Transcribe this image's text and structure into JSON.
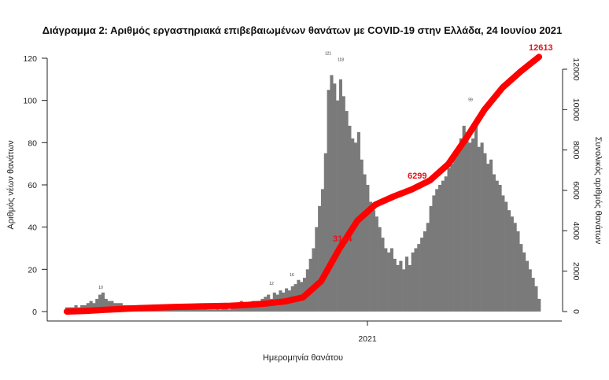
{
  "chart_data": {
    "type": "bar",
    "title": "Διάγραμμα 2: Αριθμός εργαστηριακά επιβεβαιωμένων θανάτων με COVID-19 στην Ελλάδα, 24 Ιουνίου 2021",
    "xlabel": "Ημερομηνία θανάτου",
    "ylabel": "Αριθμός νέων θανάτων",
    "y2label": "Συνολικός αριθμός θανάτων",
    "x_ticks": [
      "2021"
    ],
    "y_ticks": [
      "0",
      "20",
      "40",
      "60",
      "80",
      "100",
      "120"
    ],
    "y2_ticks": [
      "0",
      "2000",
      "4000",
      "6000",
      "8000",
      "10000",
      "12000"
    ],
    "ylim": [
      0,
      120
    ],
    "y2lim": [
      0,
      12000
    ],
    "grid": false,
    "bar_color": "#7a7a7a",
    "line_color": "#ff0000",
    "series": [
      {
        "type": "bar",
        "axis": "left",
        "values": [
          2,
          2,
          2,
          3,
          2,
          3,
          3,
          4,
          5,
          4,
          6,
          8,
          9,
          6,
          5,
          5,
          4,
          4,
          4,
          3,
          3,
          3,
          3,
          2,
          3,
          2,
          2,
          3,
          2,
          2,
          2,
          2,
          2,
          1,
          2,
          1,
          2,
          1,
          1,
          2,
          1,
          1,
          1,
          2,
          1,
          1,
          2,
          1,
          1,
          1,
          2,
          1,
          2,
          2,
          1,
          2,
          2,
          3,
          5,
          4,
          3,
          4,
          5,
          5,
          4,
          6,
          7,
          8,
          6,
          9,
          8,
          10,
          9,
          11,
          10,
          12,
          13,
          15,
          14,
          16,
          20,
          25,
          30,
          40,
          50,
          58,
          75,
          105,
          112,
          108,
          100,
          110,
          102,
          95,
          88,
          82,
          80,
          85,
          72,
          65,
          60,
          52,
          48,
          45,
          40,
          35,
          30,
          28,
          30,
          25,
          22,
          24,
          20,
          26,
          22,
          28,
          30,
          32,
          35,
          38,
          42,
          50,
          55,
          58,
          60,
          62,
          64,
          68,
          70,
          74,
          78,
          82,
          88,
          85,
          80,
          82,
          90,
          78,
          80,
          75,
          70,
          72,
          65,
          62,
          60,
          55,
          52,
          48,
          45,
          42,
          38,
          32,
          28,
          24,
          20,
          16,
          12,
          6
        ]
      },
      {
        "type": "line",
        "axis": "right",
        "values": [
          0,
          30,
          80,
          130,
          170,
          200,
          230,
          250,
          270,
          290,
          330,
          400,
          500,
          700,
          1500,
          3100,
          4500,
          5300,
          5700,
          6050,
          6500,
          7300,
          8600,
          10000,
          11100,
          11900,
          12613
        ]
      }
    ],
    "annotations": {
      "cumulative_labels": [
        "3144",
        "6299",
        "12613"
      ],
      "peak_labels": [
        "121",
        "118",
        "99",
        "10",
        "12",
        "16"
      ]
    }
  }
}
